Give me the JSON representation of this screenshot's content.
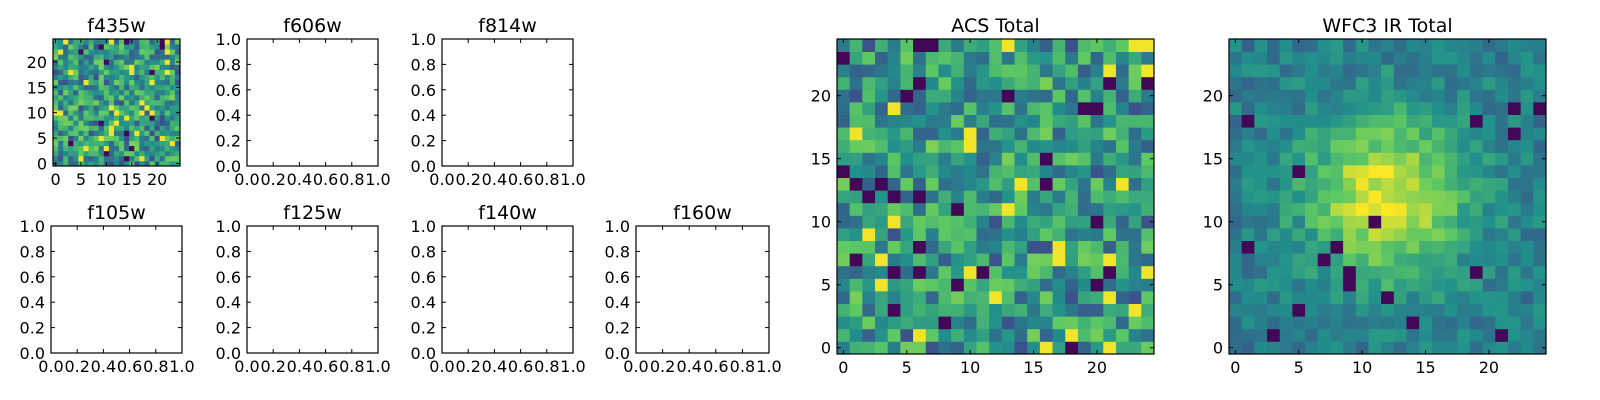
{
  "figure": {
    "cmap": [
      "#440154",
      "#3b528b",
      "#21918c",
      "#5ec962",
      "#fde725"
    ]
  },
  "chart_data": [
    {
      "id": "f435w",
      "type": "heatmap",
      "title": "f435w",
      "xlim": [
        -0.5,
        24.5
      ],
      "ylim": [
        -0.5,
        24.5
      ],
      "xticks": [
        0,
        5,
        10,
        15,
        20
      ],
      "yticks": [
        0,
        5,
        10,
        15,
        20
      ],
      "has_data": true,
      "pattern": "noise",
      "seed": 11
    },
    {
      "id": "f606w",
      "type": "heatmap",
      "title": "f606w",
      "xlim": [
        0,
        1
      ],
      "ylim": [
        0,
        1
      ],
      "xticks": [
        "0.0",
        "0.2",
        "0.4",
        "0.6",
        "0.8",
        "1.0"
      ],
      "yticks": [
        "0.0",
        "0.2",
        "0.4",
        "0.6",
        "0.8",
        "1.0"
      ],
      "has_data": false
    },
    {
      "id": "f814w",
      "type": "heatmap",
      "title": "f814w",
      "xlim": [
        0,
        1
      ],
      "ylim": [
        0,
        1
      ],
      "xticks": [
        "0.0",
        "0.2",
        "0.4",
        "0.6",
        "0.8",
        "1.0"
      ],
      "yticks": [
        "0.0",
        "0.2",
        "0.4",
        "0.6",
        "0.8",
        "1.0"
      ],
      "has_data": false
    },
    {
      "id": "f105w",
      "type": "heatmap",
      "title": "f105w",
      "xlim": [
        0,
        1
      ],
      "ylim": [
        0,
        1
      ],
      "xticks": [
        "0.0",
        "0.2",
        "0.4",
        "0.6",
        "0.8",
        "1.0"
      ],
      "yticks": [
        "0.0",
        "0.2",
        "0.4",
        "0.6",
        "0.8",
        "1.0"
      ],
      "has_data": false
    },
    {
      "id": "f125w",
      "type": "heatmap",
      "title": "f125w",
      "xlim": [
        0,
        1
      ],
      "ylim": [
        0,
        1
      ],
      "xticks": [
        "0.0",
        "0.2",
        "0.4",
        "0.6",
        "0.8",
        "1.0"
      ],
      "yticks": [
        "0.0",
        "0.2",
        "0.4",
        "0.6",
        "0.8",
        "1.0"
      ],
      "has_data": false
    },
    {
      "id": "f140w",
      "type": "heatmap",
      "title": "f140w",
      "xlim": [
        0,
        1
      ],
      "ylim": [
        0,
        1
      ],
      "xticks": [
        "0.0",
        "0.2",
        "0.4",
        "0.6",
        "0.8",
        "1.0"
      ],
      "yticks": [
        "0.0",
        "0.2",
        "0.4",
        "0.6",
        "0.8",
        "1.0"
      ],
      "has_data": false
    },
    {
      "id": "f160w",
      "type": "heatmap",
      "title": "f160w",
      "xlim": [
        0,
        1
      ],
      "ylim": [
        0,
        1
      ],
      "xticks": [
        "0.0",
        "0.2",
        "0.4",
        "0.6",
        "0.8",
        "1.0"
      ],
      "yticks": [
        "0.0",
        "0.2",
        "0.4",
        "0.6",
        "0.8",
        "1.0"
      ],
      "has_data": false
    },
    {
      "id": "acs-total",
      "type": "heatmap",
      "title": "ACS Total",
      "xlim": [
        -0.5,
        24.5
      ],
      "ylim": [
        -0.5,
        24.5
      ],
      "xticks": [
        0,
        5,
        10,
        15,
        20
      ],
      "yticks": [
        0,
        5,
        10,
        15,
        20
      ],
      "has_data": true,
      "pattern": "noise",
      "seed": 29
    },
    {
      "id": "wfc3-ir-total",
      "type": "heatmap",
      "title": "WFC3 IR Total",
      "xlim": [
        -0.5,
        24.5
      ],
      "ylim": [
        -0.5,
        24.5
      ],
      "xticks": [
        0,
        5,
        10,
        15,
        20
      ],
      "yticks": [
        0,
        5,
        10,
        15,
        20
      ],
      "has_data": true,
      "pattern": "source",
      "source_peak": [
        12,
        12
      ],
      "seed": 47
    }
  ]
}
